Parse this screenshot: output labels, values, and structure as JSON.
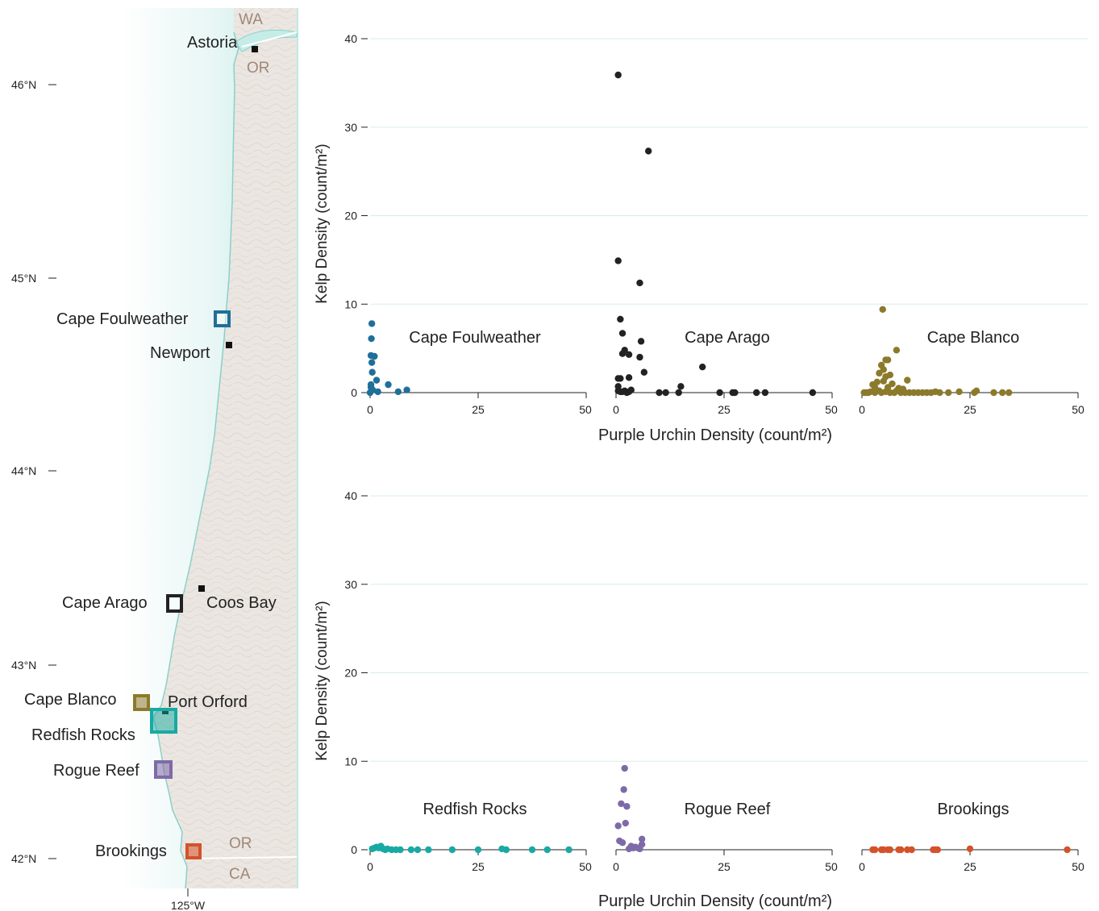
{
  "map": {
    "latitude_labels": [
      {
        "label": "46°N",
        "lat": 46
      },
      {
        "label": "45°N",
        "lat": 45
      },
      {
        "label": "44°N",
        "lat": 44
      },
      {
        "label": "43°N",
        "lat": 43
      },
      {
        "label": "42°N",
        "lat": 42
      }
    ],
    "longitude_label": "125°W",
    "state_labels": {
      "wa": "WA",
      "or_north": "OR",
      "or_south": "OR",
      "ca": "CA"
    },
    "towns": [
      {
        "name": "Astoria"
      },
      {
        "name": "Newport"
      },
      {
        "name": "Coos Bay"
      },
      {
        "name": "Port Orford"
      }
    ],
    "sites": [
      {
        "name": "Cape Foulweather",
        "color": "#1f6f99"
      },
      {
        "name": "Cape Arago",
        "color": "#222222"
      },
      {
        "name": "Cape Blanco",
        "color": "#8c7a2c"
      },
      {
        "name": "Redfish Rocks",
        "color": "#18aaa2"
      },
      {
        "name": "Rogue Reef",
        "color": "#7e6aa8"
      },
      {
        "name": "Brookings",
        "color": "#d4522a"
      }
    ],
    "colors": {
      "land": "#ebe6e1",
      "ocean_shallow": "#c6ece8",
      "coast": "#8ccfca",
      "border": "#ffffff"
    }
  },
  "chart_data": {
    "type": "scatter",
    "xlabel": "Purple Urchin Density (count/m²)",
    "ylabel": "Kelp Density (count/m²)",
    "xlim": [
      0,
      50
    ],
    "ylim": [
      0,
      40
    ],
    "x_ticks": [
      0,
      25,
      50
    ],
    "y_ticks": [
      0,
      10,
      20,
      30,
      40
    ],
    "gridlines": "horizontal",
    "panels": [
      {
        "name": "Cape Foulweather",
        "row": 0,
        "col": 0,
        "color": "#1f6f99",
        "points": [
          [
            0.4,
            7.8
          ],
          [
            0.3,
            6.1
          ],
          [
            0.2,
            4.2
          ],
          [
            1.0,
            4.1
          ],
          [
            0.4,
            3.4
          ],
          [
            0.5,
            2.3
          ],
          [
            1.5,
            1.4
          ],
          [
            4.2,
            0.9
          ],
          [
            0.2,
            0.6
          ],
          [
            0.6,
            0.3
          ],
          [
            0.0,
            0.0
          ],
          [
            1.8,
            0.1
          ],
          [
            6.5,
            0.1
          ],
          [
            8.5,
            0.3
          ],
          [
            0.2,
            0.9
          ]
        ]
      },
      {
        "name": "Cape Arago",
        "row": 0,
        "col": 1,
        "color": "#222222",
        "points": [
          [
            0.5,
            35.9
          ],
          [
            7.5,
            27.3
          ],
          [
            0.5,
            14.9
          ],
          [
            5.5,
            12.4
          ],
          [
            1.0,
            8.3
          ],
          [
            1.5,
            6.7
          ],
          [
            5.8,
            5.8
          ],
          [
            2.0,
            4.8
          ],
          [
            1.5,
            4.4
          ],
          [
            3.0,
            4.3
          ],
          [
            5.5,
            4.0
          ],
          [
            6.5,
            2.3
          ],
          [
            20.0,
            2.9
          ],
          [
            0.5,
            1.6
          ],
          [
            1.0,
            1.6
          ],
          [
            3.0,
            1.7
          ],
          [
            0.5,
            0.7
          ],
          [
            15.0,
            0.7
          ],
          [
            0.5,
            0.2
          ],
          [
            1.0,
            0.1
          ],
          [
            1.5,
            0.1
          ],
          [
            2.0,
            0.2
          ],
          [
            2.5,
            0.0
          ],
          [
            3.0,
            0.1
          ],
          [
            3.5,
            0.3
          ],
          [
            10.0,
            0.0
          ],
          [
            11.5,
            0.0
          ],
          [
            14.5,
            0.0
          ],
          [
            24.0,
            0.0
          ],
          [
            27.0,
            0.0
          ],
          [
            27.5,
            0.0
          ],
          [
            32.5,
            0.0
          ],
          [
            34.5,
            0.0
          ],
          [
            45.5,
            0.0
          ]
        ]
      },
      {
        "name": "Cape Blanco",
        "row": 0,
        "col": 2,
        "color": "#8c7a2c",
        "points": [
          [
            4.8,
            9.4
          ],
          [
            8.0,
            4.8
          ],
          [
            5.5,
            3.7
          ],
          [
            6.0,
            3.7
          ],
          [
            4.5,
            3.1
          ],
          [
            5.0,
            2.6
          ],
          [
            4.0,
            2.2
          ],
          [
            5.5,
            1.8
          ],
          [
            6.5,
            2.0
          ],
          [
            3.5,
            1.2
          ],
          [
            5.0,
            1.3
          ],
          [
            7.0,
            1.0
          ],
          [
            10.5,
            1.4
          ],
          [
            2.5,
            0.9
          ],
          [
            3.0,
            0.6
          ],
          [
            6.0,
            0.6
          ],
          [
            8.5,
            0.5
          ],
          [
            9.5,
            0.4
          ],
          [
            4.0,
            0.2
          ],
          [
            0.5,
            0.0
          ],
          [
            1.0,
            0.0
          ],
          [
            1.5,
            0.0
          ],
          [
            2.0,
            0.1
          ],
          [
            3.0,
            0.0
          ],
          [
            4.5,
            0.0
          ],
          [
            5.5,
            0.1
          ],
          [
            6.5,
            0.0
          ],
          [
            7.5,
            0.0
          ],
          [
            8.0,
            0.2
          ],
          [
            9.0,
            0.0
          ],
          [
            10.0,
            0.0
          ],
          [
            11.0,
            0.0
          ],
          [
            12.0,
            0.0
          ],
          [
            13.0,
            0.0
          ],
          [
            14.0,
            0.0
          ],
          [
            15.0,
            0.0
          ],
          [
            16.0,
            0.0
          ],
          [
            17.0,
            0.1
          ],
          [
            18.0,
            0.0
          ],
          [
            20.0,
            0.0
          ],
          [
            22.5,
            0.1
          ],
          [
            26.0,
            0.0
          ],
          [
            26.5,
            0.2
          ],
          [
            30.5,
            0.0
          ],
          [
            32.5,
            0.0
          ],
          [
            34.0,
            0.0
          ]
        ]
      },
      {
        "name": "Redfish Rocks",
        "row": 1,
        "col": 0,
        "color": "#18aaa2",
        "points": [
          [
            0.5,
            0.1
          ],
          [
            1.0,
            0.2
          ],
          [
            1.5,
            0.3
          ],
          [
            2.0,
            0.2
          ],
          [
            2.5,
            0.4
          ],
          [
            3.0,
            0.1
          ],
          [
            3.5,
            0.0
          ],
          [
            4.0,
            0.1
          ],
          [
            5.0,
            0.0
          ],
          [
            6.0,
            0.0
          ],
          [
            7.0,
            0.0
          ],
          [
            9.5,
            0.0
          ],
          [
            11.0,
            0.0
          ],
          [
            13.5,
            0.0
          ],
          [
            19.0,
            0.0
          ],
          [
            25.0,
            0.0
          ],
          [
            30.5,
            0.1
          ],
          [
            31.5,
            0.0
          ],
          [
            37.5,
            0.0
          ],
          [
            41.0,
            0.0
          ],
          [
            46.0,
            0.0
          ]
        ]
      },
      {
        "name": "Rogue Reef",
        "row": 1,
        "col": 1,
        "color": "#7e6aa8",
        "points": [
          [
            2.0,
            9.2
          ],
          [
            1.8,
            6.8
          ],
          [
            1.2,
            5.2
          ],
          [
            2.5,
            4.9
          ],
          [
            2.2,
            3.0
          ],
          [
            0.5,
            2.7
          ],
          [
            0.8,
            1.0
          ],
          [
            1.5,
            0.8
          ],
          [
            6.0,
            1.2
          ],
          [
            6.0,
            0.6
          ],
          [
            3.5,
            0.4
          ],
          [
            4.0,
            0.2
          ],
          [
            4.5,
            0.3
          ],
          [
            5.0,
            0.2
          ],
          [
            5.5,
            0.1
          ],
          [
            3.0,
            0.1
          ]
        ]
      },
      {
        "name": "Brookings",
        "row": 1,
        "col": 2,
        "color": "#d4522a",
        "points": [
          [
            2.5,
            0.0
          ],
          [
            3.0,
            0.0
          ],
          [
            4.5,
            0.0
          ],
          [
            5.0,
            0.0
          ],
          [
            6.0,
            0.0
          ],
          [
            6.5,
            0.0
          ],
          [
            8.5,
            0.0
          ],
          [
            9.0,
            0.0
          ],
          [
            10.5,
            0.0
          ],
          [
            11.5,
            0.0
          ],
          [
            16.5,
            0.0
          ],
          [
            17.0,
            0.0
          ],
          [
            17.5,
            0.0
          ],
          [
            25.0,
            0.1
          ],
          [
            47.5,
            0.0
          ]
        ]
      }
    ]
  }
}
